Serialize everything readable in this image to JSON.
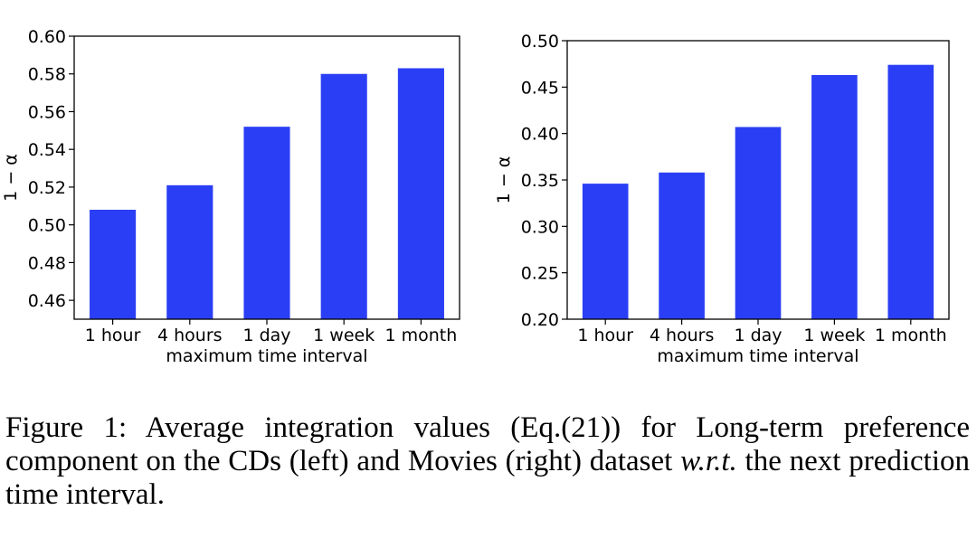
{
  "chart_data": [
    {
      "type": "bar",
      "categories": [
        "1 hour",
        "4 hours",
        "1 day",
        "1 week",
        "1 month"
      ],
      "values": [
        0.508,
        0.521,
        0.552,
        0.58,
        0.583
      ],
      "xlabel": "maximum time interval",
      "ylabel": "1 − α",
      "ylim": [
        0.45,
        0.6
      ],
      "yticks": [
        "0.46",
        "0.48",
        "0.50",
        "0.52",
        "0.54",
        "0.56",
        "0.58",
        "0.60"
      ],
      "bar_color": "#2a3ff5",
      "grid": false
    },
    {
      "type": "bar",
      "categories": [
        "1 hour",
        "4 hours",
        "1 day",
        "1 week",
        "1 month"
      ],
      "values": [
        0.346,
        0.358,
        0.407,
        0.463,
        0.474
      ],
      "xlabel": "maximum time interval",
      "ylabel": "1 − α",
      "ylim": [
        0.2,
        0.5
      ],
      "yticks": [
        "0.20",
        "0.25",
        "0.30",
        "0.35",
        "0.40",
        "0.45",
        "0.50"
      ],
      "bar_color": "#2a3ff5",
      "grid": false
    }
  ],
  "caption": {
    "part1": "Figure 1: Average integration values (Eq.(21)) for Long-term preference component on the CDs (left) and Movies (right) dataset ",
    "wrt": "w.r.t.",
    "part2": " the next prediction time interval."
  }
}
